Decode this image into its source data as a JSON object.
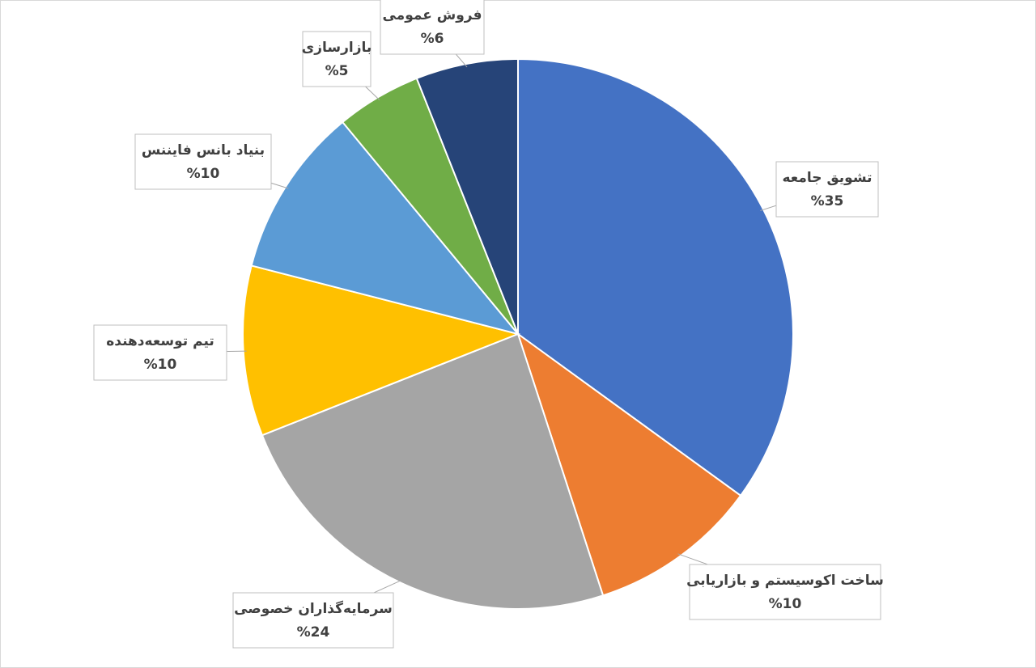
{
  "chart_data": {
    "type": "pie",
    "categories": [
      "تشویق جامعه",
      "ساخت اکوسیستم و بازاریابی",
      "سرمایه‌گذاران خصوصی",
      "تیم توسعه‌دهنده",
      "بنیاد بانس فایننس",
      "بازارسازی",
      "فروش عمومی"
    ],
    "values": [
      35,
      10,
      24,
      10,
      10,
      5,
      6
    ],
    "value_labels": [
      "%35",
      "%10",
      "%24",
      "%10",
      "%10",
      "%5",
      "%6"
    ],
    "colors": [
      "#4472c4",
      "#ed7d31",
      "#a5a5a5",
      "#ffc000",
      "#5b9bd5",
      "#70ad47",
      "#264478"
    ]
  }
}
